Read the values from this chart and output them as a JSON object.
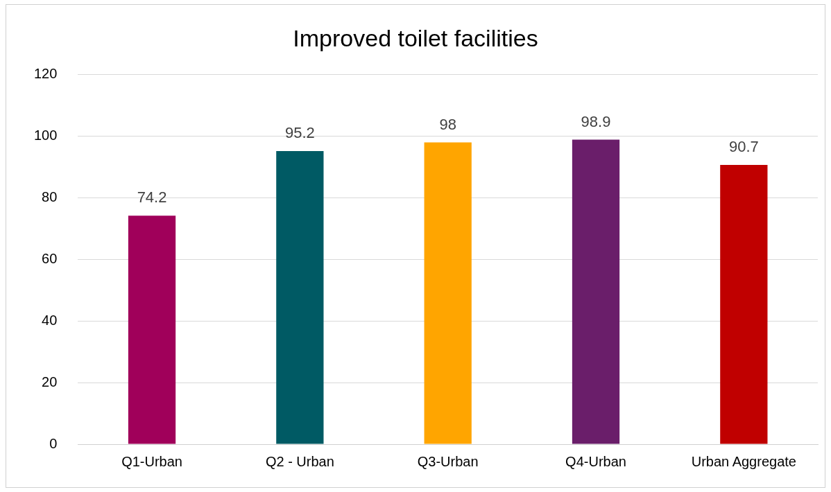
{
  "chart_data": {
    "type": "bar",
    "title": "Improved toilet facilities",
    "categories": [
      "Q1-Urban",
      "Q2 - Urban",
      "Q3-Urban",
      "Q4-Urban",
      "Urban Aggregate"
    ],
    "values": [
      74.2,
      95.2,
      98,
      98.9,
      90.7
    ],
    "colors": [
      "#a0005a",
      "#005a64",
      "#ffa500",
      "#6a1e6a",
      "#c00000"
    ],
    "ylim": [
      0,
      120
    ],
    "yticks": [
      0,
      20,
      40,
      60,
      80,
      100,
      120
    ],
    "grid": "y",
    "data_labels": true,
    "legend": false
  }
}
